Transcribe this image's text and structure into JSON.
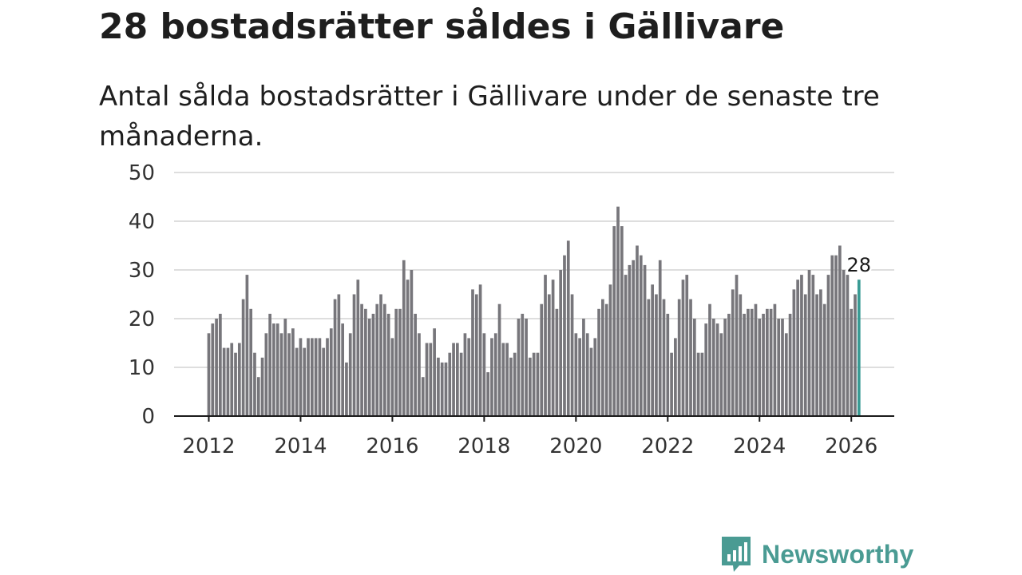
{
  "header": {
    "title": "28 bostadsrätter såldes i Gällivare",
    "subtitle": "Antal sålda bostadsrätter i Gällivare under de senaste tre månaderna."
  },
  "brand": {
    "name": "Newsworthy",
    "icon": "newsworthy-logo-icon",
    "color": "#4a9b93"
  },
  "chart_data": {
    "type": "bar",
    "title": "28 bostadsrätter såldes i Gällivare",
    "subtitle": "Antal sålda bostadsrätter i Gällivare under de senaste tre månaderna.",
    "xlabel": "",
    "ylabel": "",
    "x_start": "2012-01",
    "frequency": "monthly",
    "xticks": [
      "2012",
      "2014",
      "2016",
      "2018",
      "2020",
      "2022",
      "2024",
      "2026"
    ],
    "yticks": [
      0,
      10,
      20,
      30,
      40,
      50
    ],
    "ylim": [
      0,
      50
    ],
    "grid": true,
    "bar_color": "#77767b",
    "highlight_color": "#3a9b94",
    "highlight_last": true,
    "last_value_label": "28",
    "values": [
      17,
      19,
      20,
      21,
      14,
      14,
      15,
      13,
      15,
      24,
      29,
      22,
      13,
      8,
      12,
      17,
      21,
      19,
      19,
      17,
      20,
      17,
      18,
      14,
      16,
      14,
      16,
      16,
      16,
      16,
      14,
      16,
      18,
      24,
      25,
      19,
      11,
      17,
      25,
      28,
      23,
      22,
      20,
      21,
      23,
      25,
      23,
      21,
      16,
      22,
      22,
      32,
      28,
      30,
      21,
      17,
      8,
      15,
      15,
      18,
      12,
      11,
      11,
      13,
      15,
      15,
      13,
      17,
      16,
      26,
      25,
      27,
      17,
      9,
      16,
      17,
      23,
      15,
      15,
      12,
      13,
      20,
      21,
      20,
      12,
      13,
      13,
      23,
      29,
      25,
      28,
      22,
      30,
      33,
      36,
      25,
      17,
      16,
      20,
      17,
      14,
      16,
      22,
      24,
      23,
      27,
      39,
      43,
      39,
      29,
      31,
      32,
      35,
      33,
      31,
      24,
      27,
      25,
      32,
      24,
      21,
      13,
      16,
      24,
      28,
      29,
      24,
      20,
      13,
      13,
      19,
      23,
      20,
      19,
      17,
      20,
      21,
      26,
      29,
      25,
      21,
      22,
      22,
      23,
      20,
      21,
      22,
      22,
      23,
      20,
      20,
      17,
      21,
      26,
      28,
      29,
      25,
      30,
      29,
      25,
      26,
      23,
      29,
      33,
      33,
      35,
      30,
      29,
      22,
      25,
      28
    ]
  }
}
